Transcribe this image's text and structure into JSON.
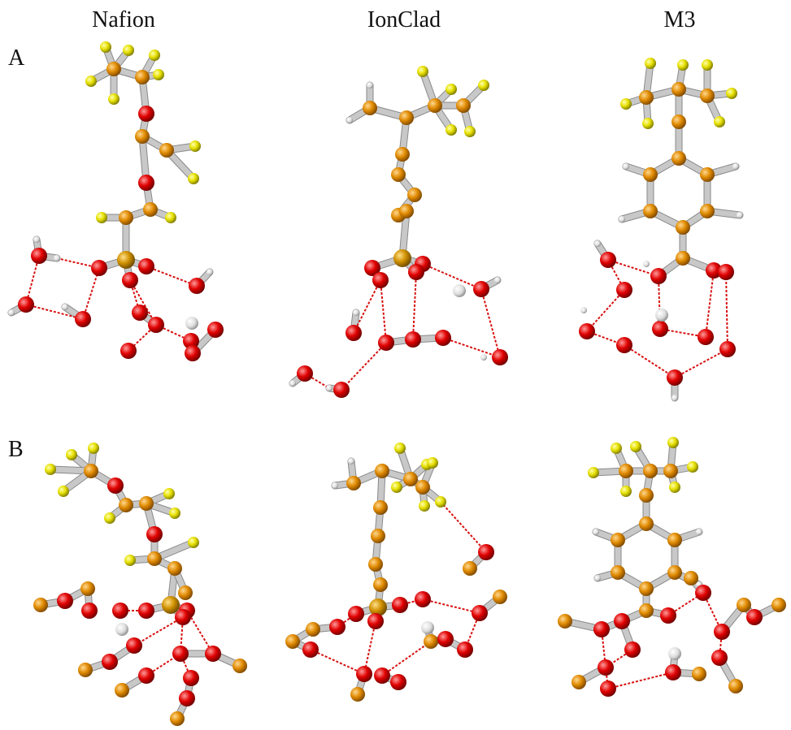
{
  "columns": [
    "Nafion",
    "IonClad",
    "M3"
  ],
  "rows": [
    "A",
    "B"
  ]
}
